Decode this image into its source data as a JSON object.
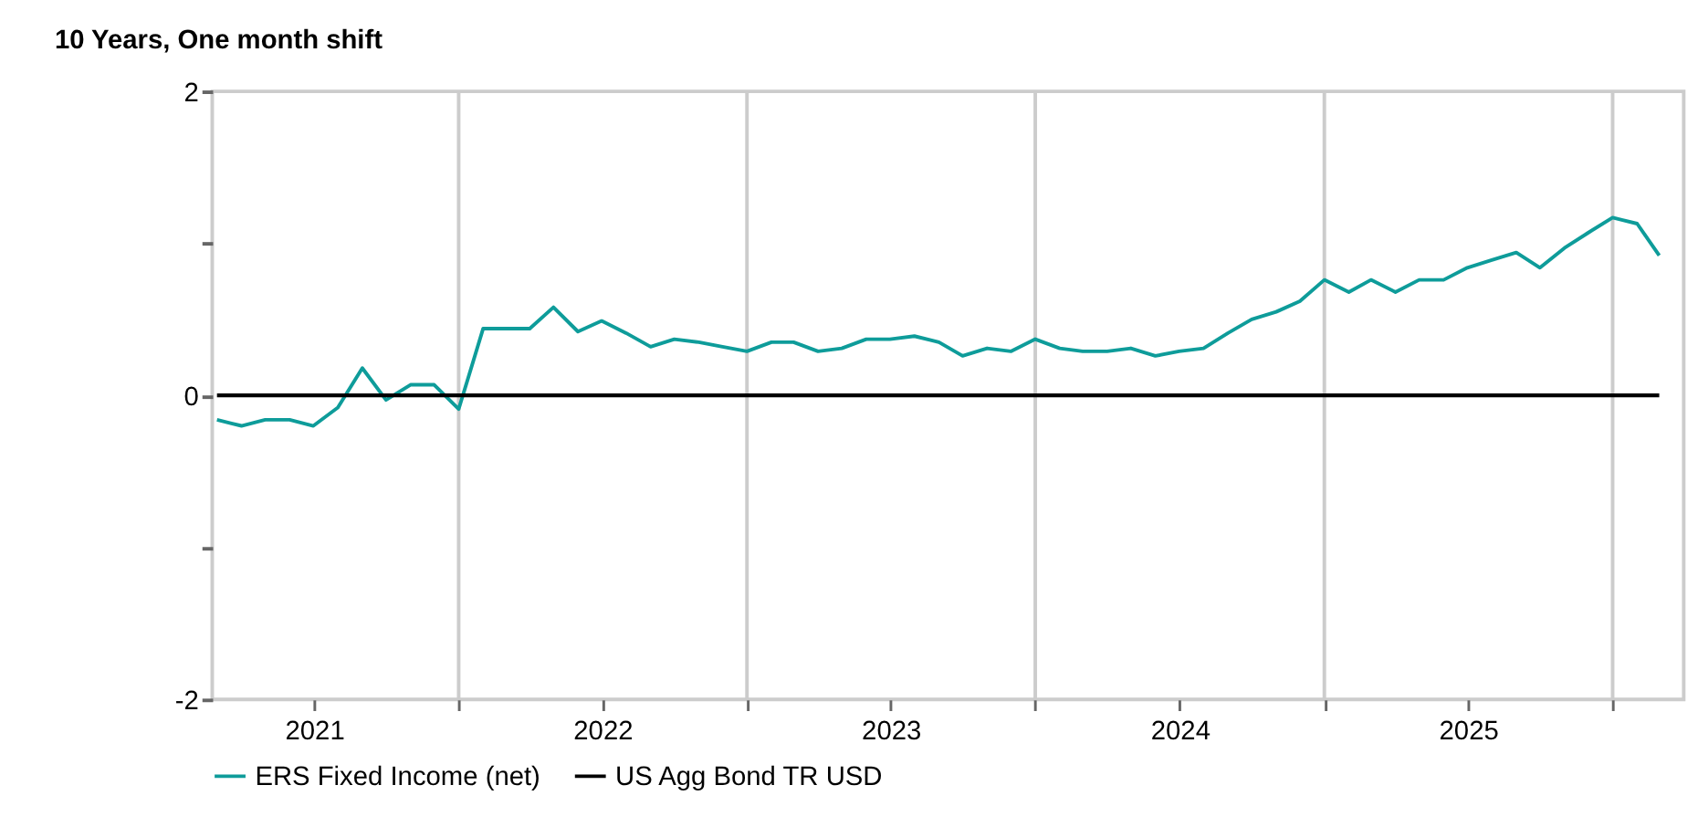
{
  "chart_data": {
    "type": "line",
    "title": "10 Years, One month shift",
    "x": [
      "2021-03",
      "2021-04",
      "2021-05",
      "2021-06",
      "2021-07",
      "2021-08",
      "2021-09",
      "2021-10",
      "2021-11",
      "2021-12",
      "2022-01",
      "2022-02",
      "2022-03",
      "2022-04",
      "2022-05",
      "2022-06",
      "2022-07",
      "2022-08",
      "2022-09",
      "2022-10",
      "2022-11",
      "2022-12",
      "2023-01",
      "2023-02",
      "2023-03",
      "2023-04",
      "2023-05",
      "2023-06",
      "2023-07",
      "2023-08",
      "2023-09",
      "2023-10",
      "2023-11",
      "2023-12",
      "2024-01",
      "2024-02",
      "2024-03",
      "2024-04",
      "2024-05",
      "2024-06",
      "2024-07",
      "2024-08",
      "2024-09",
      "2024-10",
      "2024-11",
      "2024-12",
      "2025-01",
      "2025-02",
      "2025-03",
      "2025-04",
      "2025-05",
      "2025-06",
      "2025-07",
      "2025-08",
      "2025-09",
      "2025-10",
      "2025-11",
      "2025-12",
      "2026-01",
      "2026-02",
      "2026-03"
    ],
    "series": [
      {
        "name": "ERS Fixed Income (net)",
        "color": "#0e9c9a",
        "values": [
          -0.16,
          -0.2,
          -0.16,
          -0.16,
          -0.2,
          -0.08,
          0.18,
          -0.03,
          0.07,
          0.07,
          -0.09,
          0.44,
          0.44,
          0.44,
          0.58,
          0.42,
          0.49,
          0.41,
          0.32,
          0.37,
          0.35,
          0.32,
          0.29,
          0.35,
          0.35,
          0.29,
          0.31,
          0.37,
          0.37,
          0.39,
          0.35,
          0.26,
          0.31,
          0.29,
          0.37,
          0.31,
          0.29,
          0.29,
          0.31,
          0.26,
          0.29,
          0.31,
          0.41,
          0.5,
          0.55,
          0.62,
          0.76,
          0.68,
          0.76,
          0.68,
          0.76,
          0.76,
          0.84,
          0.89,
          0.94,
          0.84,
          0.97,
          1.07,
          1.17,
          1.13,
          0.92
        ]
      },
      {
        "name": "US Agg Bond TR USD",
        "color": "#000000",
        "values": [
          0,
          0,
          0,
          0,
          0,
          0,
          0,
          0,
          0,
          0,
          0,
          0,
          0,
          0,
          0,
          0,
          0,
          0,
          0,
          0,
          0,
          0,
          0,
          0,
          0,
          0,
          0,
          0,
          0,
          0,
          0,
          0,
          0,
          0,
          0,
          0,
          0,
          0,
          0,
          0,
          0,
          0,
          0,
          0,
          0,
          0,
          0,
          0,
          0,
          0,
          0,
          0,
          0,
          0,
          0,
          0,
          0,
          0,
          0,
          0,
          0
        ]
      }
    ],
    "xlim": [
      "2021-02-23",
      "2026-04-01"
    ],
    "xticks": [
      {
        "value": "2021-07-02",
        "label": "2021"
      },
      {
        "value": "2022-01-01",
        "label": null
      },
      {
        "value": "2022-07-02",
        "label": "2022"
      },
      {
        "value": "2023-01-01",
        "label": null
      },
      {
        "value": "2023-07-02",
        "label": "2023"
      },
      {
        "value": "2024-01-01",
        "label": null
      },
      {
        "value": "2024-07-02",
        "label": "2024"
      },
      {
        "value": "2025-01-01",
        "label": null
      },
      {
        "value": "2025-07-02",
        "label": "2025"
      },
      {
        "value": "2026-01-01",
        "label": null
      }
    ],
    "ylim": [
      -2,
      2
    ],
    "yticks": [
      -2,
      {
        "value": -1,
        "label": null
      },
      0,
      {
        "value": 1,
        "label": null
      },
      2
    ],
    "grid": "x",
    "legend": "bottom",
    "marker": "none",
    "line_style": "solid"
  }
}
